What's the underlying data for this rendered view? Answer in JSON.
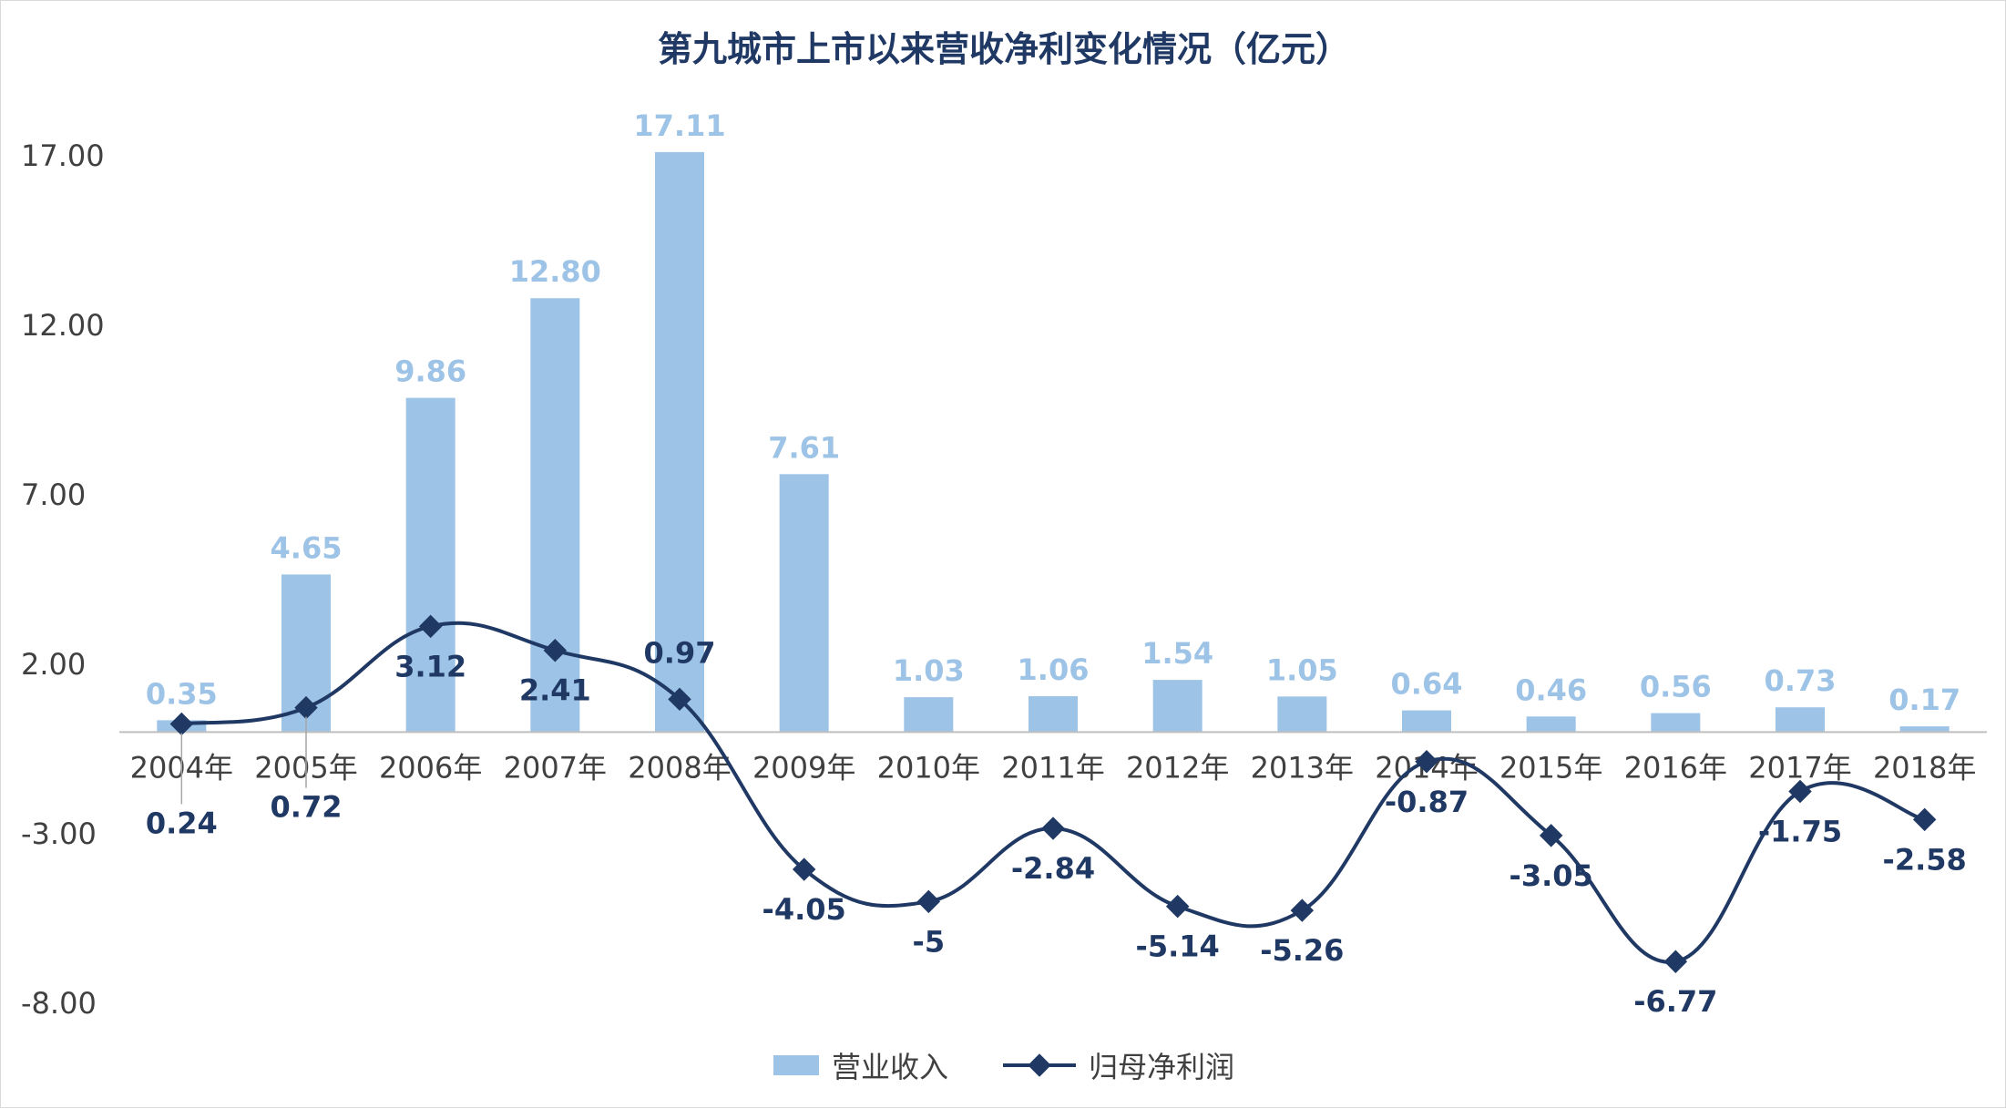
{
  "chart_data": {
    "type": "bar",
    "title": "第九城市上市以来营收净利变化情况（亿元）",
    "categories": [
      "2004年",
      "2005年",
      "2006年",
      "2007年",
      "2008年",
      "2009年",
      "2010年",
      "2011年",
      "2012年",
      "2013年",
      "2014年",
      "2015年",
      "2016年",
      "2017年",
      "2018年"
    ],
    "series": [
      {
        "name": "营业收入",
        "type": "bar",
        "color": "#9dc3e6",
        "values": [
          0.35,
          4.65,
          9.86,
          12.8,
          17.11,
          7.61,
          1.03,
          1.06,
          1.54,
          1.05,
          0.64,
          0.46,
          0.56,
          0.73,
          0.17
        ],
        "labels": [
          "0.35",
          "4.65",
          "9.86",
          "12.80",
          "17.11",
          "7.61",
          "1.03",
          "1.06",
          "1.54",
          "1.05",
          "0.64",
          "0.46",
          "0.56",
          "0.73",
          "0.17"
        ]
      },
      {
        "name": "归母净利润",
        "type": "line",
        "smooth": true,
        "color": "#1f3864",
        "values": [
          0.24,
          0.72,
          3.12,
          2.41,
          0.97,
          -4.05,
          -5,
          -2.84,
          -5.14,
          -5.26,
          -0.87,
          -3.05,
          -6.77,
          -1.75,
          -2.58
        ],
        "labels": [
          "0.24",
          "0.72",
          "3.12",
          "2.41",
          "0.97",
          "-4.05",
          "-5",
          "-2.84",
          "-5.14",
          "-5.26",
          "-0.87",
          "-3.05",
          "-6.77",
          "-1.75",
          "-2.58"
        ]
      }
    ],
    "yticks": [
      "17.00",
      "12.00",
      "7.00",
      "2.00",
      "-3.00",
      "-8.00"
    ],
    "ytick_values": [
      17,
      12,
      7,
      2,
      -3,
      -8
    ],
    "ylim": [
      -8,
      17
    ],
    "grid": false,
    "legend": "bottom"
  },
  "legend": {
    "bar_label": "营业收入",
    "line_label": "归母净利润"
  }
}
